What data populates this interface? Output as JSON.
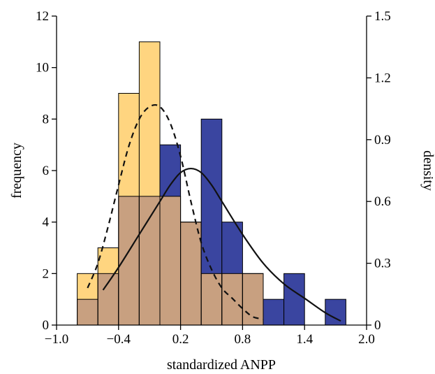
{
  "chart_data": {
    "type": "bar",
    "xlabel": "standardized ANPP",
    "ylabel": "frequency",
    "y2label": "density",
    "xlim": [
      -1.0,
      2.0
    ],
    "ylim": [
      0,
      12
    ],
    "y2lim": [
      0,
      1.5
    ],
    "bin_width": 0.2,
    "bin_starts": [
      -0.8,
      -0.6,
      -0.4,
      -0.2,
      0.0,
      0.2,
      0.4,
      0.6,
      0.8,
      1.0,
      1.2,
      1.4,
      1.6
    ],
    "xticks": [
      "−1.0",
      "−0.4",
      "0.2",
      "0.8",
      "1.4",
      "2.0"
    ],
    "xtick_values": [
      -1.0,
      -0.4,
      0.2,
      0.8,
      1.4,
      2.0
    ],
    "yticks": [
      "0",
      "2",
      "4",
      "6",
      "8",
      "10",
      "12"
    ],
    "ytick_values": [
      0,
      2,
      4,
      6,
      8,
      10,
      12
    ],
    "y2ticks": [
      "0",
      "0.3",
      "0.6",
      "0.9",
      "1.2",
      "1.5"
    ],
    "y2tick_values": [
      0,
      0.3,
      0.6,
      0.9,
      1.2,
      1.5
    ],
    "series": [
      {
        "kind": "histogram",
        "color": "#FFD580",
        "values": [
          2,
          3,
          9,
          11,
          5,
          4,
          2,
          2,
          2,
          0,
          0,
          0,
          0
        ]
      },
      {
        "kind": "histogram",
        "color": "#3A45A0",
        "values": [
          1,
          2,
          5,
          5,
          7,
          4,
          8,
          4,
          2,
          1,
          2,
          0,
          1
        ]
      },
      {
        "kind": "density",
        "style": "dashed",
        "x": [
          -0.7,
          -0.6,
          -0.5,
          -0.4,
          -0.3,
          -0.2,
          -0.1,
          0.0,
          0.1,
          0.2,
          0.3,
          0.4,
          0.5,
          0.6,
          0.7,
          0.8,
          0.9,
          1.0
        ],
        "y": [
          0.18,
          0.3,
          0.48,
          0.68,
          0.87,
          1.0,
          1.06,
          1.06,
          0.98,
          0.82,
          0.6,
          0.4,
          0.27,
          0.18,
          0.13,
          0.08,
          0.04,
          0.03
        ]
      },
      {
        "kind": "density",
        "style": "solid",
        "x": [
          -0.55,
          -0.4,
          -0.2,
          0.0,
          0.1,
          0.2,
          0.3,
          0.4,
          0.5,
          0.6,
          0.8,
          1.0,
          1.2,
          1.4,
          1.6,
          1.75
        ],
        "y": [
          0.17,
          0.28,
          0.44,
          0.6,
          0.68,
          0.74,
          0.76,
          0.74,
          0.68,
          0.6,
          0.44,
          0.3,
          0.2,
          0.13,
          0.06,
          0.02
        ]
      }
    ],
    "overlap_color": "#C8A080",
    "grid": false
  }
}
